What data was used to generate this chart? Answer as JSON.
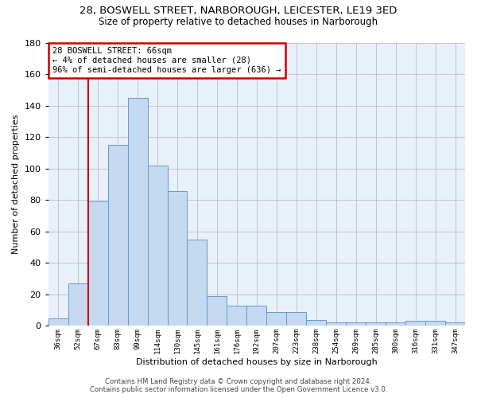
{
  "title_line1": "28, BOSWELL STREET, NARBOROUGH, LEICESTER, LE19 3ED",
  "title_line2": "Size of property relative to detached houses in Narborough",
  "xlabel": "Distribution of detached houses by size in Narborough",
  "ylabel": "Number of detached properties",
  "bar_color": "#c5d9f0",
  "bar_edge_color": "#6699cc",
  "categories": [
    "36sqm",
    "52sqm",
    "67sqm",
    "83sqm",
    "99sqm",
    "114sqm",
    "130sqm",
    "145sqm",
    "161sqm",
    "176sqm",
    "192sqm",
    "207sqm",
    "223sqm",
    "238sqm",
    "254sqm",
    "269sqm",
    "285sqm",
    "300sqm",
    "316sqm",
    "331sqm",
    "347sqm"
  ],
  "values": [
    5,
    27,
    79,
    115,
    145,
    102,
    86,
    55,
    19,
    13,
    13,
    9,
    9,
    4,
    2,
    2,
    2,
    2,
    3,
    3,
    2
  ],
  "ylim": [
    0,
    180
  ],
  "yticks": [
    0,
    20,
    40,
    60,
    80,
    100,
    120,
    140,
    160,
    180
  ],
  "annotation_text": "28 BOSWELL STREET: 66sqm\n← 4% of detached houses are smaller (28)\n96% of semi-detached houses are larger (636) →",
  "annotation_box_color": "#ffffff",
  "annotation_box_edge": "#cc0000",
  "vline_color": "#cc0000",
  "vline_x_index": 1.5,
  "footer_line1": "Contains HM Land Registry data © Crown copyright and database right 2024.",
  "footer_line2": "Contains public sector information licensed under the Open Government Licence v3.0.",
  "background_color": "#ffffff",
  "plot_bg_color": "#e8f0f8",
  "grid_color": "#bbbbcc"
}
